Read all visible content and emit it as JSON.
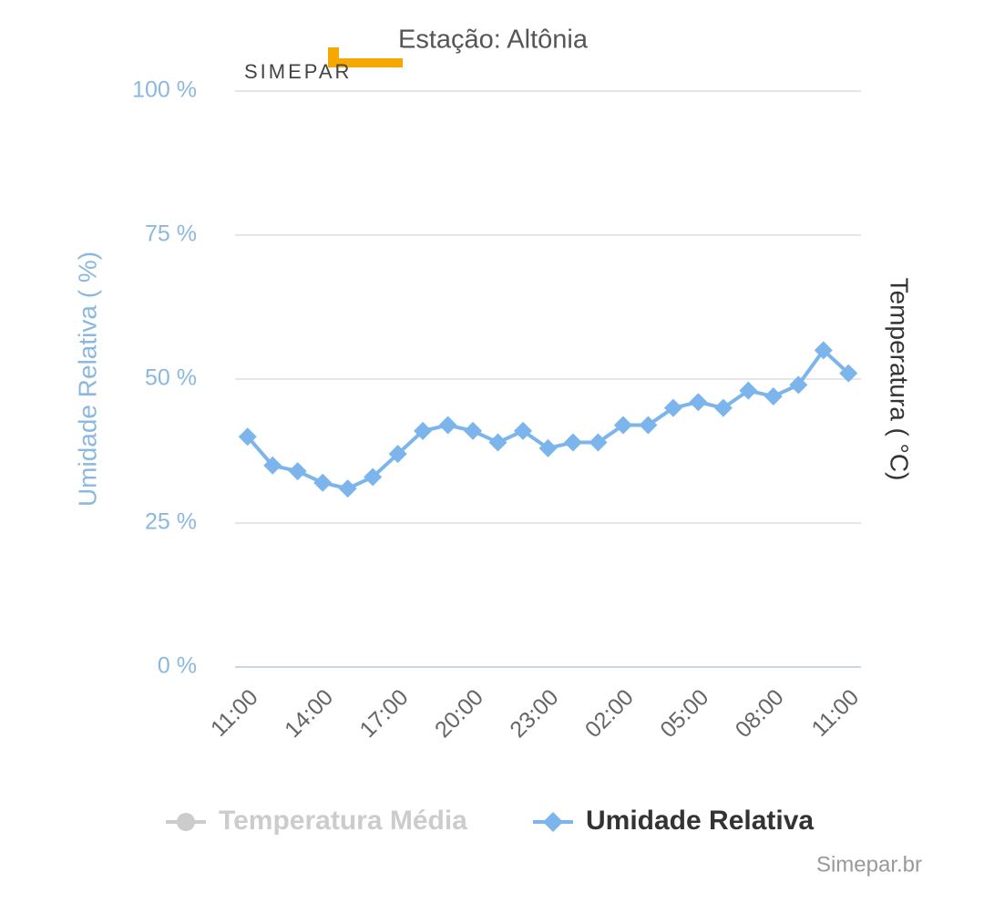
{
  "chart_data": {
    "type": "line",
    "title": "Estação: Altônia",
    "logo": "SIMEPAR",
    "credits": "Simepar.br",
    "y_label": "Umidade Relativa ( %)",
    "y2_label": "Temperatura ( °C)",
    "categories": [
      "11:00",
      null,
      null,
      "14:00",
      null,
      null,
      "17:00",
      null,
      null,
      "20:00",
      null,
      null,
      "23:00",
      null,
      null,
      "02:00",
      null,
      null,
      "05:00",
      null,
      null,
      "08:00",
      null,
      null,
      "11:00"
    ],
    "ylim": [
      0,
      100
    ],
    "yticks": [
      {
        "value": 0,
        "label": "0 %"
      },
      {
        "value": 25,
        "label": "25 %"
      },
      {
        "value": 50,
        "label": "50 %"
      },
      {
        "value": 75,
        "label": "75 %"
      },
      {
        "value": 100,
        "label": "100 %"
      }
    ],
    "grid": true,
    "legend": "bottom",
    "series": [
      {
        "name": "Temperatura Média",
        "color": "#cccccc",
        "axis": "y2",
        "visible": false,
        "values": [
          null,
          null,
          null,
          null,
          null,
          null,
          null,
          null,
          null,
          null,
          null,
          null,
          null,
          null,
          null,
          null,
          null,
          null,
          null,
          null,
          null,
          null,
          null,
          null,
          null
        ]
      },
      {
        "name": "Umidade Relativa",
        "color": "#7cb5ec",
        "visible": true,
        "values": [
          40,
          35,
          34,
          32,
          31,
          33,
          37,
          41,
          42,
          41,
          39,
          41,
          38,
          39,
          39,
          42,
          42,
          45,
          46,
          45,
          48,
          47,
          49,
          55,
          51
        ]
      }
    ]
  }
}
